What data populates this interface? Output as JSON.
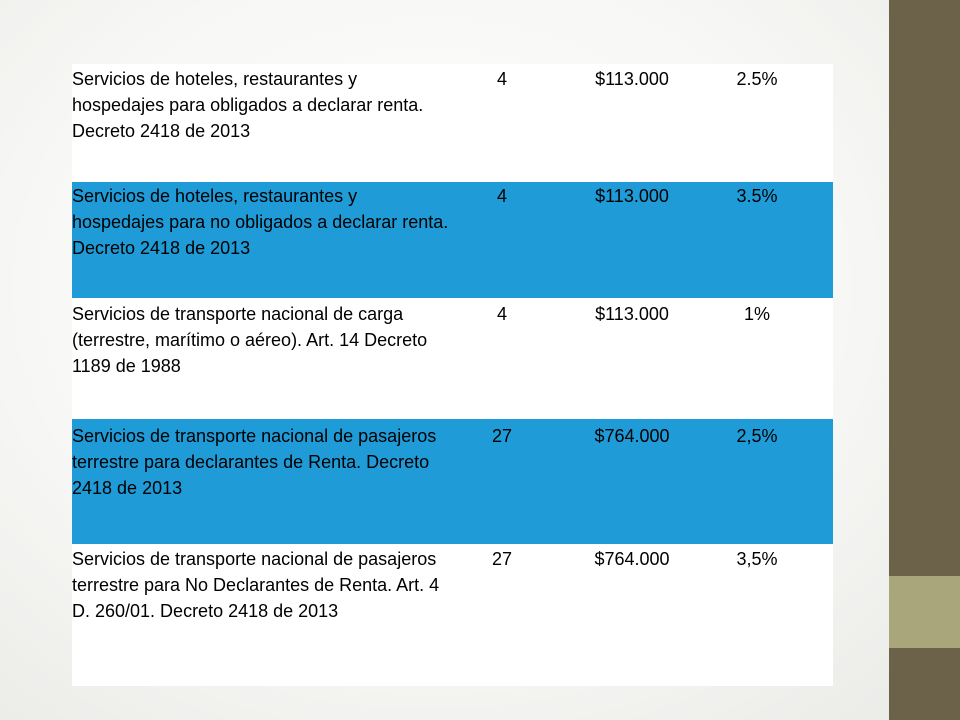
{
  "rows": [
    {
      "desc": "Servicios de hoteles, restaurantes y hospedajes para obligados a declarar renta. Decreto 2418 de 2013",
      "qty": "4",
      "value": "$113.000",
      "rate": "2.5%",
      "highlight": false
    },
    {
      "desc": "Servicios de hoteles, restaurantes y hospedajes para no obligados a declarar renta. Decreto 2418 de 2013",
      "qty": "4",
      "value": "$113.000",
      "rate": "3.5%",
      "highlight": true
    },
    {
      "desc": "Servicios de transporte nacional de carga (terrestre, marítimo o aéreo). Art. 14 Decreto 1189 de 1988",
      "qty": "4",
      "value": "$113.000",
      "rate": "1%",
      "highlight": false
    },
    {
      "desc": "Servicios de transporte nacional de pasajeros terrestre para declarantes de Renta. Decreto 2418 de 2013",
      "qty": "27",
      "value": "$764.000",
      "rate": "2,5%",
      "highlight": true
    },
    {
      "desc": "Servicios de transporte nacional de pasajeros terrestre para No Declarantes de Renta. Art. 4 D. 260/01. Decreto 2418 de 2013",
      "qty": "27",
      "value": "$764.000",
      "rate": "3,5%",
      "highlight": false
    }
  ],
  "colors": {
    "highlight": "#1f9bd8",
    "sidebar": "#6b6249",
    "sidebar_accent": "#a8a67a"
  }
}
